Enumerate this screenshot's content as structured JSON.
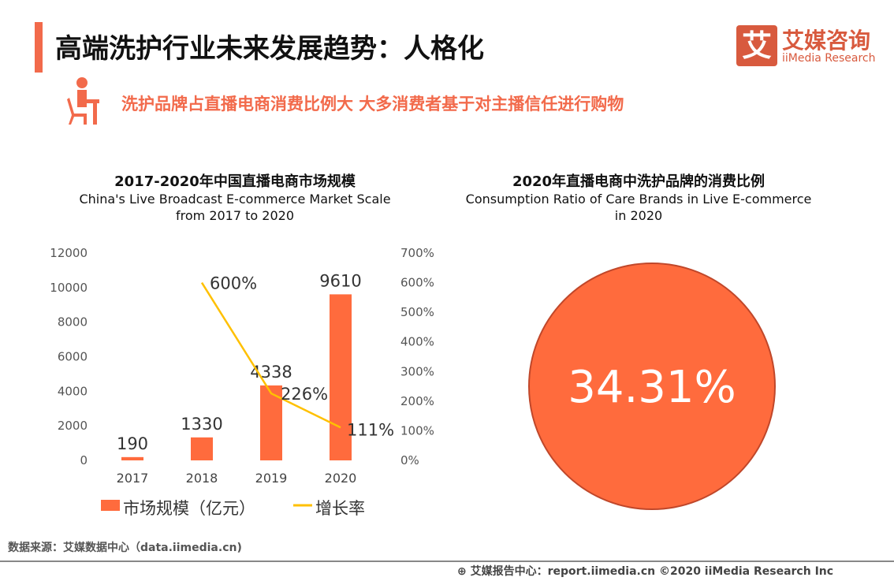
{
  "header": {
    "title": "高端洗护行业未来发展趋势：人格化",
    "subtitle": "洗护品牌占直播电商消费比例大 大多消费者基于对主播信任进行购物",
    "logo": {
      "mark": "艾",
      "cn": "艾媒咨询",
      "en": "iiMedia Research"
    }
  },
  "colors": {
    "accent": "#F26A4B",
    "bar": "#FF6B3D",
    "line": "#FFC000",
    "pie": "#FF6B3D",
    "pie_border": "#C0472A"
  },
  "left_chart": {
    "title": "2017-2020年中国直播电商市场规模",
    "subtitle1": "China's Live Broadcast E-commerce Market Scale",
    "subtitle2": "from 2017 to 2020"
  },
  "right_chart": {
    "title": "2020年直播电商中洗护品牌的消费比例",
    "subtitle1": "Consumption Ratio of Care Brands in Live E-commerce",
    "subtitle2": "in 2020"
  },
  "chart_data": [
    {
      "type": "bar",
      "categories": [
        "2017",
        "2018",
        "2019",
        "2020"
      ],
      "series": [
        {
          "name": "市场规模（亿元）",
          "type": "bar",
          "axis": "left",
          "values": [
            190,
            1330,
            4338,
            9610
          ],
          "labels": [
            "190",
            "1330",
            "4338",
            "9610"
          ]
        },
        {
          "name": "增长率",
          "type": "line",
          "axis": "right",
          "values": [
            null,
            600,
            226,
            111
          ],
          "labels": [
            "",
            "600%",
            "226%",
            "111%"
          ]
        }
      ],
      "ylim": [
        0,
        12000
      ],
      "yticks": [
        "0",
        "2000",
        "4000",
        "6000",
        "8000",
        "10000",
        "12000"
      ],
      "y2lim": [
        0,
        700
      ],
      "y2ticks": [
        "0%",
        "100%",
        "200%",
        "300%",
        "400%",
        "500%",
        "600%",
        "700%"
      ],
      "legend": "bottom",
      "grid": false
    },
    {
      "type": "pie",
      "values": [
        34.31
      ],
      "label": "34.31%"
    }
  ],
  "footer": {
    "source": "数据来源：艾媒数据中心（data.iimedia.cn)",
    "report": "艾媒报告中心：report.iimedia.cn   ©2020  iiMedia Research  Inc"
  }
}
